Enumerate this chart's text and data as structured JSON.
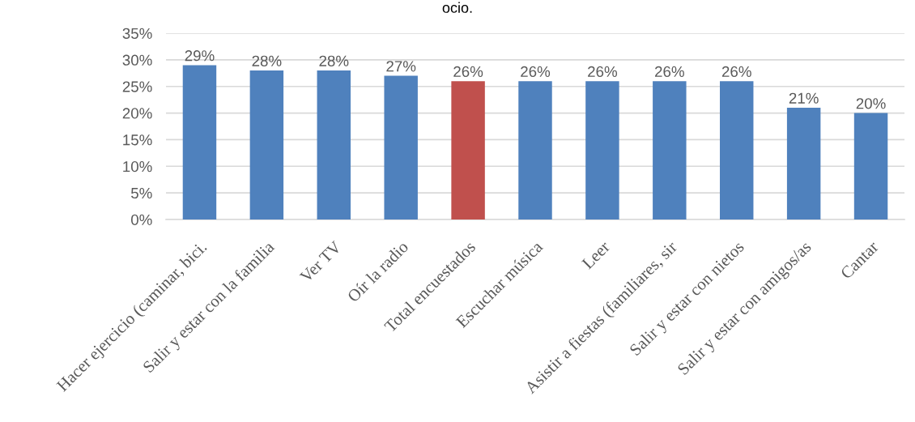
{
  "chart_data": {
    "type": "bar",
    "title": "ocio.",
    "categories": [
      "Hacer ejercicio (caminar, bici.",
      "Salir y estar con la familia",
      "Ver TV",
      "Oír la radio",
      "Total encuestados",
      "Escuchar música",
      "Leer",
      "Asistir a fiestas (familiares, sir",
      "Salir y estar con nietos",
      "Salir y estar con amigos/as",
      "Cantar"
    ],
    "values": [
      29,
      28,
      28,
      27,
      26,
      26,
      26,
      26,
      26,
      21,
      20
    ],
    "colors": [
      "#4f81bd",
      "#4f81bd",
      "#4f81bd",
      "#4f81bd",
      "#c0504d",
      "#4f81bd",
      "#4f81bd",
      "#4f81bd",
      "#4f81bd",
      "#4f81bd",
      "#4f81bd"
    ],
    "value_labels": [
      "29%",
      "28%",
      "28%",
      "27%",
      "26%",
      "26%",
      "26%",
      "26%",
      "26%",
      "21%",
      "20%"
    ],
    "ylim": [
      0,
      35
    ],
    "yticks": [
      {
        "value": 0,
        "label": "0%"
      },
      {
        "value": 5,
        "label": "5%"
      },
      {
        "value": 10,
        "label": "10%"
      },
      {
        "value": 15,
        "label": "15%"
      },
      {
        "value": 20,
        "label": "20%"
      },
      {
        "value": 25,
        "label": "25%"
      },
      {
        "value": 30,
        "label": "30%"
      },
      {
        "value": 35,
        "label": "35%"
      }
    ],
    "grid": "y",
    "legend": false
  }
}
